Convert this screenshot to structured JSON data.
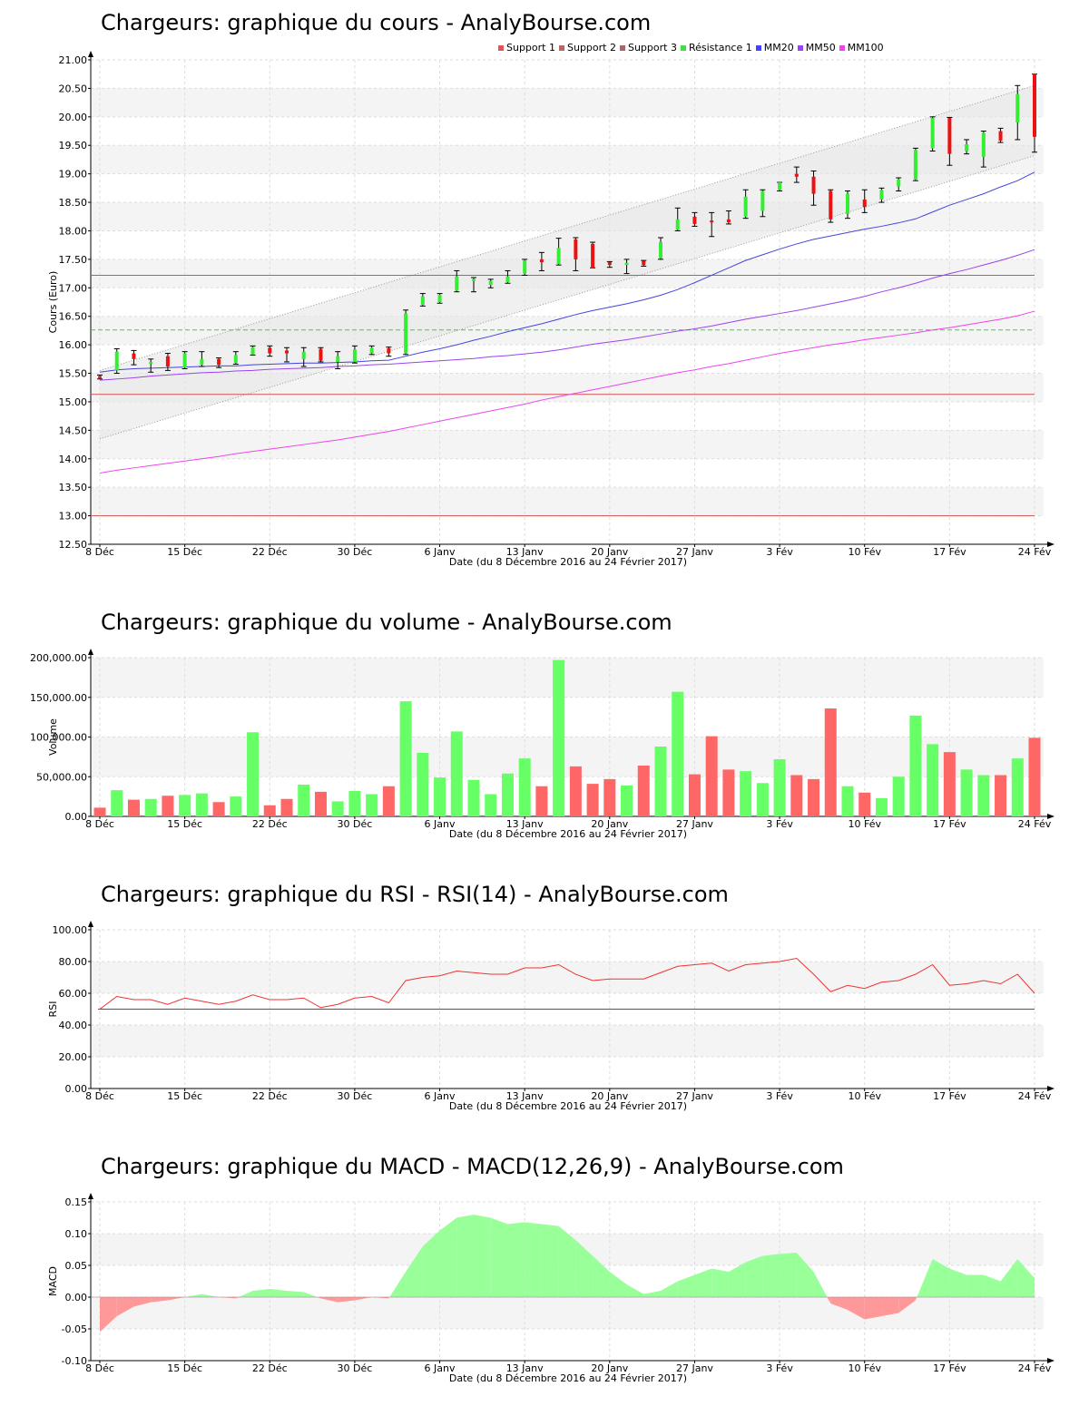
{
  "colors": {
    "up": "#33ee33",
    "down": "#ee1111",
    "vol_up": "#66ff66",
    "vol_down": "#ff6666",
    "mm20": "#4444dd",
    "mm50": "#9944ee",
    "mm100": "#ee44ee",
    "support": "#cc5555",
    "resistance": "#44cc44",
    "rsi": "#ee3333",
    "macd_pos": "#99ff99",
    "macd_neg": "#ff9999",
    "band_fill": "#e8e8e8",
    "band_stripe": "#f4f4f4"
  },
  "x_axis": {
    "label": "Date (du 8 Décembre 2016 au 24 Février 2017)",
    "ticks": [
      {
        "index": 0,
        "label": "8 Déc"
      },
      {
        "index": 5,
        "label": "15 Déc"
      },
      {
        "index": 10,
        "label": "22 Déc"
      },
      {
        "index": 15,
        "label": "30 Déc"
      },
      {
        "index": 20,
        "label": "6 Janv"
      },
      {
        "index": 25,
        "label": "13 Janv"
      },
      {
        "index": 30,
        "label": "20 Janv"
      },
      {
        "index": 35,
        "label": "27 Janv"
      },
      {
        "index": 40,
        "label": "3 Fév"
      },
      {
        "index": 45,
        "label": "10 Fév"
      },
      {
        "index": 50,
        "label": "17 Fév"
      },
      {
        "index": 55,
        "label": "24 Fév"
      }
    ],
    "count": 56
  },
  "price": {
    "title": "Chargeurs: graphique du cours - AnalyBourse.com",
    "ylabel": "Cours (Euro)",
    "ylim": [
      12.5,
      21.0
    ],
    "yticks": [
      "12.50",
      "13.00",
      "13.50",
      "14.00",
      "14.50",
      "15.00",
      "15.50",
      "16.00",
      "16.50",
      "17.00",
      "17.50",
      "18.00",
      "18.50",
      "19.00",
      "19.50",
      "20.00",
      "20.50",
      "21.00"
    ],
    "legend": [
      {
        "label": "Support 1",
        "color": "#dd5555"
      },
      {
        "label": "Support 2",
        "color": "#bb6666"
      },
      {
        "label": "Support 3",
        "color": "#aa6666"
      },
      {
        "label": "Résistance 1",
        "color": "#44dd44"
      },
      {
        "label": "MM20",
        "color": "#4444ff"
      },
      {
        "label": "MM50",
        "color": "#9944ee"
      },
      {
        "label": "MM100",
        "color": "#ee44ee"
      }
    ],
    "support_levels": [
      17.22,
      15.13,
      13.0
    ],
    "resistance_level": 16.26
  },
  "volume": {
    "title": "Chargeurs: graphique du volume - AnalyBourse.com",
    "ylabel": "Volume",
    "ylim": [
      0,
      200000
    ],
    "yticks": [
      "0.00",
      "50,000.00",
      "100,000.00",
      "150,000.00",
      "200,000.00"
    ]
  },
  "rsi": {
    "title": "Chargeurs: graphique du RSI - RSI(14) - AnalyBourse.com",
    "ylabel": "RSI",
    "ylim": [
      0,
      100
    ],
    "yticks": [
      "0.00",
      "20.00",
      "40.00",
      "60.00",
      "80.00",
      "100.00"
    ],
    "reference": 50
  },
  "macd": {
    "title": "Chargeurs: graphique du MACD - MACD(12,26,9) - AnalyBourse.com",
    "ylabel": "MACD",
    "ylim": [
      -0.1,
      0.15
    ],
    "yticks": [
      "-0.10",
      "-0.05",
      "0.00",
      "0.05",
      "0.10",
      "0.15"
    ]
  },
  "chart_data": [
    {
      "type": "candlestick",
      "title": "Chargeurs: graphique du cours - AnalyBourse.com",
      "ylabel": "Cours (Euro)",
      "xlabel": "Date (du 8 Décembre 2016 au 24 Février 2017)",
      "ylim": [
        12.5,
        21.0
      ],
      "ohlc": [
        [
          15.45,
          15.47,
          15.4,
          15.42
        ],
        [
          15.55,
          15.93,
          15.5,
          15.88
        ],
        [
          15.85,
          15.9,
          15.65,
          15.75
        ],
        [
          15.68,
          15.75,
          15.52,
          15.7
        ],
        [
          15.8,
          15.85,
          15.55,
          15.62
        ],
        [
          15.6,
          15.88,
          15.58,
          15.85
        ],
        [
          15.65,
          15.88,
          15.62,
          15.75
        ],
        [
          15.75,
          15.77,
          15.6,
          15.65
        ],
        [
          15.68,
          15.88,
          15.66,
          15.82
        ],
        [
          15.83,
          15.98,
          15.82,
          15.96
        ],
        [
          15.95,
          15.98,
          15.8,
          15.85
        ],
        [
          15.9,
          15.95,
          15.7,
          15.85
        ],
        [
          15.75,
          15.95,
          15.62,
          15.88
        ],
        [
          15.93,
          15.95,
          15.7,
          15.72
        ],
        [
          15.7,
          15.88,
          15.58,
          15.8
        ],
        [
          15.7,
          15.98,
          15.68,
          15.92
        ],
        [
          15.85,
          15.98,
          15.83,
          15.95
        ],
        [
          15.94,
          15.96,
          15.8,
          15.85
        ],
        [
          15.85,
          16.61,
          15.83,
          16.55
        ],
        [
          16.7,
          16.9,
          16.68,
          16.85
        ],
        [
          16.75,
          16.9,
          16.73,
          16.88
        ],
        [
          16.95,
          17.3,
          16.93,
          17.2
        ],
        [
          17.12,
          17.18,
          16.93,
          17.15
        ],
        [
          17.05,
          17.15,
          17.0,
          17.12
        ],
        [
          17.1,
          17.3,
          17.08,
          17.2
        ],
        [
          17.25,
          17.5,
          17.22,
          17.48
        ],
        [
          17.5,
          17.62,
          17.3,
          17.45
        ],
        [
          17.42,
          17.87,
          17.4,
          17.7
        ],
        [
          17.85,
          17.88,
          17.3,
          17.5
        ],
        [
          17.77,
          17.8,
          17.35,
          17.35
        ],
        [
          17.45,
          17.46,
          17.36,
          17.4
        ],
        [
          17.4,
          17.5,
          17.25,
          17.44
        ],
        [
          17.47,
          17.48,
          17.38,
          17.4
        ],
        [
          17.52,
          17.88,
          17.5,
          17.8
        ],
        [
          18.02,
          18.4,
          18.0,
          18.2
        ],
        [
          18.25,
          18.32,
          18.08,
          18.12
        ],
        [
          18.18,
          18.32,
          17.9,
          18.15
        ],
        [
          18.2,
          18.35,
          18.12,
          18.15
        ],
        [
          18.25,
          18.72,
          18.22,
          18.6
        ],
        [
          18.35,
          18.72,
          18.25,
          18.7
        ],
        [
          18.72,
          18.85,
          18.7,
          18.85
        ],
        [
          19.0,
          19.12,
          18.85,
          18.95
        ],
        [
          18.95,
          19.05,
          18.45,
          18.65
        ],
        [
          18.7,
          18.72,
          18.15,
          18.2
        ],
        [
          18.3,
          18.7,
          18.22,
          18.65
        ],
        [
          18.55,
          18.72,
          18.32,
          18.42
        ],
        [
          18.55,
          18.75,
          18.5,
          18.72
        ],
        [
          18.78,
          18.93,
          18.7,
          18.9
        ],
        [
          18.9,
          19.45,
          18.88,
          19.42
        ],
        [
          19.45,
          20.0,
          19.4,
          19.98
        ],
        [
          19.98,
          19.99,
          19.15,
          19.35
        ],
        [
          19.4,
          19.6,
          19.35,
          19.52
        ],
        [
          19.3,
          19.75,
          19.12,
          19.72
        ],
        [
          19.75,
          19.8,
          19.55,
          19.58
        ],
        [
          19.9,
          20.55,
          19.6,
          20.4
        ],
        [
          20.75,
          20.75,
          19.38,
          19.65
        ]
      ],
      "mm20": [
        15.52,
        15.56,
        15.58,
        15.59,
        15.6,
        15.61,
        15.62,
        15.63,
        15.63,
        15.65,
        15.66,
        15.67,
        15.68,
        15.68,
        15.69,
        15.7,
        15.72,
        15.73,
        15.8,
        15.87,
        15.93,
        16.0,
        16.08,
        16.15,
        16.23,
        16.3,
        16.37,
        16.45,
        16.53,
        16.6,
        16.66,
        16.72,
        16.79,
        16.87,
        16.97,
        17.09,
        17.22,
        17.35,
        17.48,
        17.58,
        17.68,
        17.77,
        17.85,
        17.91,
        17.97,
        18.03,
        18.08,
        18.14,
        18.21,
        18.33,
        18.45,
        18.55,
        18.65,
        18.77,
        18.88,
        19.03
      ],
      "mm50": [
        15.38,
        15.4,
        15.42,
        15.45,
        15.47,
        15.49,
        15.51,
        15.52,
        15.54,
        15.55,
        15.57,
        15.58,
        15.59,
        15.6,
        15.62,
        15.63,
        15.65,
        15.66,
        15.68,
        15.7,
        15.72,
        15.74,
        15.76,
        15.79,
        15.81,
        15.84,
        15.87,
        15.91,
        15.96,
        16.01,
        16.05,
        16.09,
        16.14,
        16.19,
        16.24,
        16.28,
        16.33,
        16.39,
        16.45,
        16.5,
        16.55,
        16.6,
        16.66,
        16.72,
        16.78,
        16.85,
        16.93,
        17.0,
        17.08,
        17.17,
        17.25,
        17.32,
        17.4,
        17.48,
        17.57,
        17.67
      ],
      "mm100": [
        13.75,
        13.8,
        13.84,
        13.88,
        13.92,
        13.96,
        14.0,
        14.04,
        14.09,
        14.13,
        14.17,
        14.21,
        14.25,
        14.29,
        14.33,
        14.38,
        14.43,
        14.48,
        14.54,
        14.6,
        14.66,
        14.72,
        14.78,
        14.84,
        14.9,
        14.96,
        15.03,
        15.09,
        15.15,
        15.21,
        15.27,
        15.33,
        15.39,
        15.45,
        15.51,
        15.56,
        15.62,
        15.67,
        15.73,
        15.79,
        15.85,
        15.9,
        15.95,
        16.0,
        16.04,
        16.09,
        16.13,
        16.17,
        16.21,
        16.26,
        16.3,
        16.35,
        16.4,
        16.45,
        16.51,
        16.59
      ],
      "channel": {
        "lower": [
          [
            0,
            14.35
          ],
          [
            55,
            19.32
          ]
        ],
        "upper": [
          [
            0,
            15.55
          ],
          [
            55,
            20.55
          ]
        ]
      }
    },
    {
      "type": "bar",
      "title": "Chargeurs: graphique du volume - AnalyBourse.com",
      "ylabel": "Volume",
      "ylim": [
        0,
        200000
      ],
      "values": [
        11000,
        33000,
        21000,
        22000,
        26000,
        27000,
        29000,
        18000,
        25000,
        106000,
        14000,
        22000,
        40000,
        31000,
        19000,
        32000,
        28000,
        38000,
        145000,
        80000,
        49000,
        107000,
        46000,
        28000,
        54000,
        73000,
        38000,
        197000,
        63000,
        41000,
        47000,
        39000,
        64000,
        88000,
        157000,
        53000,
        101000,
        59000,
        57000,
        42000,
        72000,
        52000,
        47000,
        136000,
        38000,
        30000,
        23000,
        50000,
        127000,
        91000,
        81000,
        59000,
        52000,
        52000,
        73000,
        99000
      ]
    },
    {
      "type": "line",
      "title": "Chargeurs: graphique du RSI - RSI(14) - AnalyBourse.com",
      "ylabel": "RSI",
      "ylim": [
        0,
        100
      ],
      "values": [
        50,
        58,
        56,
        56,
        53,
        57,
        55,
        53,
        55,
        59,
        56,
        56,
        57,
        51,
        53,
        57,
        58,
        54,
        68,
        70,
        71,
        74,
        73,
        72,
        72,
        76,
        76,
        78,
        72,
        68,
        69,
        69,
        69,
        73,
        77,
        78,
        79,
        74,
        78,
        79,
        80,
        82,
        72,
        61,
        65,
        63,
        67,
        68,
        72,
        78,
        65,
        66,
        68,
        66,
        72,
        60
      ]
    },
    {
      "type": "area",
      "title": "Chargeurs: graphique du MACD - MACD(12,26,9) - AnalyBourse.com",
      "ylabel": "MACD",
      "ylim": [
        -0.1,
        0.15
      ],
      "values": [
        -0.055,
        -0.03,
        -0.015,
        -0.008,
        -0.005,
        0.0,
        0.005,
        0.0,
        -0.002,
        0.01,
        0.013,
        0.01,
        0.008,
        -0.002,
        -0.008,
        -0.005,
        0.0,
        -0.002,
        0.04,
        0.08,
        0.105,
        0.125,
        0.13,
        0.125,
        0.115,
        0.118,
        0.115,
        0.112,
        0.09,
        0.065,
        0.04,
        0.02,
        0.005,
        0.01,
        0.025,
        0.035,
        0.045,
        0.04,
        0.055,
        0.065,
        0.068,
        0.07,
        0.04,
        -0.01,
        -0.02,
        -0.035,
        -0.03,
        -0.025,
        -0.005,
        0.06,
        0.045,
        0.035,
        0.035,
        0.025,
        0.06,
        0.03
      ]
    }
  ]
}
